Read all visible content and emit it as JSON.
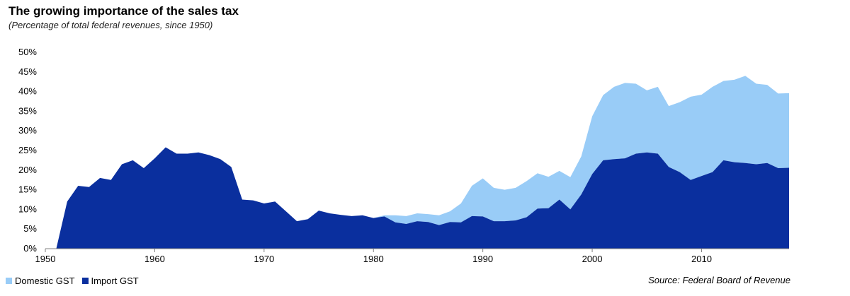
{
  "header": {
    "title": "The growing importance of the sales tax",
    "subtitle": "(Percentage of total federal revenues, since 1950)"
  },
  "source": "Source: Federal Board of Revenue",
  "colors": {
    "domestic": "#99ccf7",
    "import": "#0a2f9e"
  },
  "chart_data": {
    "type": "area",
    "stacked": true,
    "x": [
      1950,
      1951,
      1952,
      1953,
      1954,
      1955,
      1956,
      1957,
      1958,
      1959,
      1960,
      1961,
      1962,
      1963,
      1964,
      1965,
      1966,
      1967,
      1968,
      1969,
      1970,
      1971,
      1972,
      1973,
      1974,
      1975,
      1976,
      1977,
      1978,
      1979,
      1980,
      1981,
      1982,
      1983,
      1984,
      1985,
      1986,
      1987,
      1988,
      1989,
      1990,
      1991,
      1992,
      1993,
      1994,
      1995,
      1996,
      1997,
      1998,
      1999,
      2000,
      2001,
      2002,
      2003,
      2004,
      2005,
      2006,
      2007,
      2008,
      2009,
      2010,
      2011,
      2012,
      2013,
      2014,
      2015,
      2016,
      2017,
      2018
    ],
    "series": [
      {
        "name": "Import GST",
        "values": [
          0,
          0,
          12,
          16,
          15.7,
          18,
          17.5,
          21.5,
          22.5,
          20.5,
          23,
          25.8,
          24.2,
          24.2,
          24.5,
          23.8,
          22.8,
          20.8,
          12.5,
          12.3,
          11.5,
          12,
          9.5,
          7,
          7.5,
          9.7,
          9,
          8.6,
          8.3,
          8.5,
          7.8,
          8.2,
          6.7,
          6.3,
          7,
          6.8,
          6,
          6.8,
          6.7,
          8.3,
          8.2,
          7,
          7,
          7.2,
          8,
          10.2,
          10.3,
          12.5,
          10,
          13.8,
          19,
          22.5,
          22.8,
          23,
          24.2,
          24.5,
          24.2,
          20.8,
          19.5,
          17.5,
          18.5,
          19.5,
          22.5,
          22,
          21.8,
          21.5,
          21.8,
          20.5,
          20.6
        ]
      },
      {
        "name": "Domestic GST",
        "values": [
          0,
          0,
          0,
          0,
          0,
          0,
          0,
          0,
          0,
          0,
          0,
          0,
          0,
          0,
          0,
          0,
          0,
          0,
          0,
          0,
          0,
          0,
          0,
          0,
          0,
          0,
          0,
          0,
          0,
          0,
          0,
          0.3,
          1.8,
          2,
          2,
          2,
          2.5,
          2.7,
          4.8,
          7.7,
          9.7,
          8.5,
          8,
          8.3,
          9.2,
          9,
          8,
          7.3,
          8.2,
          9.7,
          14.7,
          16.6,
          18.4,
          19.2,
          17.8,
          15.8,
          17,
          15.5,
          17.8,
          21.2,
          20.7,
          21.7,
          20.2,
          21,
          22.2,
          20.5,
          19.9,
          19,
          19
        ]
      }
    ],
    "xlim": [
      1950,
      2018
    ],
    "ylim": [
      0,
      50
    ],
    "x_ticks": [
      1950,
      1960,
      1970,
      1980,
      1990,
      2000,
      2010
    ],
    "y_ticks": [
      "0%",
      "5%",
      "10%",
      "15%",
      "20%",
      "25%",
      "30%",
      "35%",
      "40%",
      "45%",
      "50%"
    ],
    "grid": false,
    "legend_position": "bottom-left"
  }
}
